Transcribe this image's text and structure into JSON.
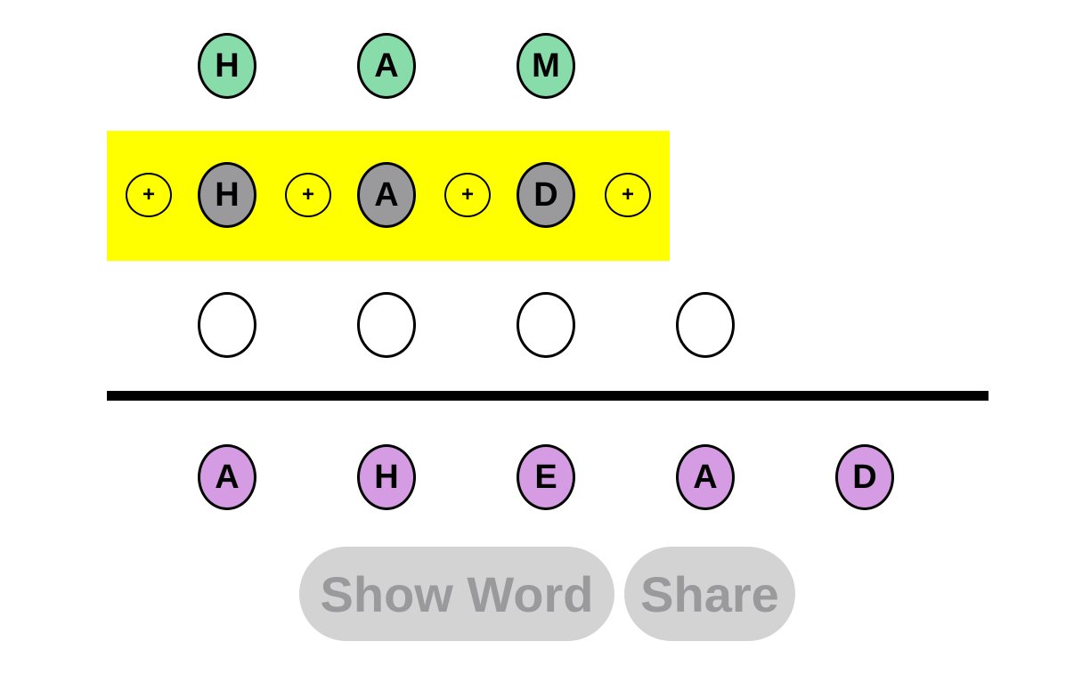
{
  "target_word": {
    "letters": [
      "H",
      "A",
      "M"
    ],
    "color": "#88dcaa"
  },
  "current_word": {
    "letters": [
      "H",
      "A",
      "D"
    ],
    "color": "#9a9a9c",
    "highlight_color": "#ffff00",
    "insert_symbol": "+"
  },
  "next_word": {
    "slot_count": 4
  },
  "letter_pool": {
    "letters": [
      "A",
      "H",
      "E",
      "A",
      "D"
    ],
    "color": "#d59be3"
  },
  "buttons": {
    "show_word_label": "Show Word",
    "share_label": "Share"
  }
}
